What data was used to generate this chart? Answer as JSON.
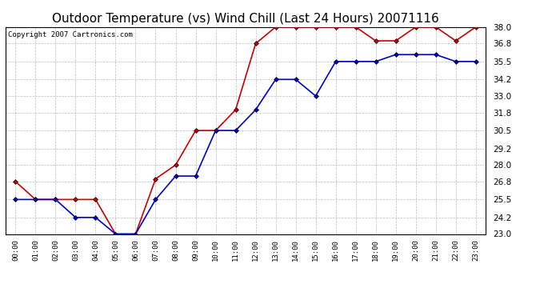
{
  "title": "Outdoor Temperature (vs) Wind Chill (Last 24 Hours) 20071116",
  "copyright": "Copyright 2007 Cartronics.com",
  "hours": [
    "00:00",
    "01:00",
    "02:00",
    "03:00",
    "04:00",
    "05:00",
    "06:00",
    "07:00",
    "08:00",
    "09:00",
    "10:00",
    "11:00",
    "12:00",
    "13:00",
    "14:00",
    "15:00",
    "16:00",
    "17:00",
    "18:00",
    "19:00",
    "20:00",
    "21:00",
    "22:00",
    "23:00"
  ],
  "temp": [
    26.8,
    25.5,
    25.5,
    25.5,
    25.5,
    23.0,
    23.0,
    27.0,
    28.0,
    30.5,
    30.5,
    32.0,
    36.8,
    38.0,
    38.0,
    38.0,
    38.0,
    38.0,
    37.0,
    37.0,
    38.0,
    38.0,
    37.0,
    38.0
  ],
  "windchill": [
    25.5,
    25.5,
    25.5,
    24.2,
    24.2,
    23.0,
    23.0,
    25.5,
    27.2,
    27.2,
    30.5,
    30.5,
    32.0,
    34.2,
    34.2,
    33.0,
    35.5,
    35.5,
    35.5,
    36.0,
    36.0,
    36.0,
    35.5,
    35.5
  ],
  "temp_color": "#cc0000",
  "windchill_color": "#0000cc",
  "bg_color": "#ffffff",
  "plot_bg_color": "#ffffff",
  "grid_color": "#bbbbbb",
  "ylim": [
    23.0,
    38.0
  ],
  "yticks": [
    23.0,
    24.2,
    25.5,
    26.8,
    28.0,
    29.2,
    30.5,
    31.8,
    33.0,
    34.2,
    35.5,
    36.8,
    38.0
  ],
  "title_fontsize": 11,
  "copyright_fontsize": 6.5,
  "marker": "D",
  "marker_size": 3.0,
  "marker_color": "#000000",
  "line_width": 1.2
}
